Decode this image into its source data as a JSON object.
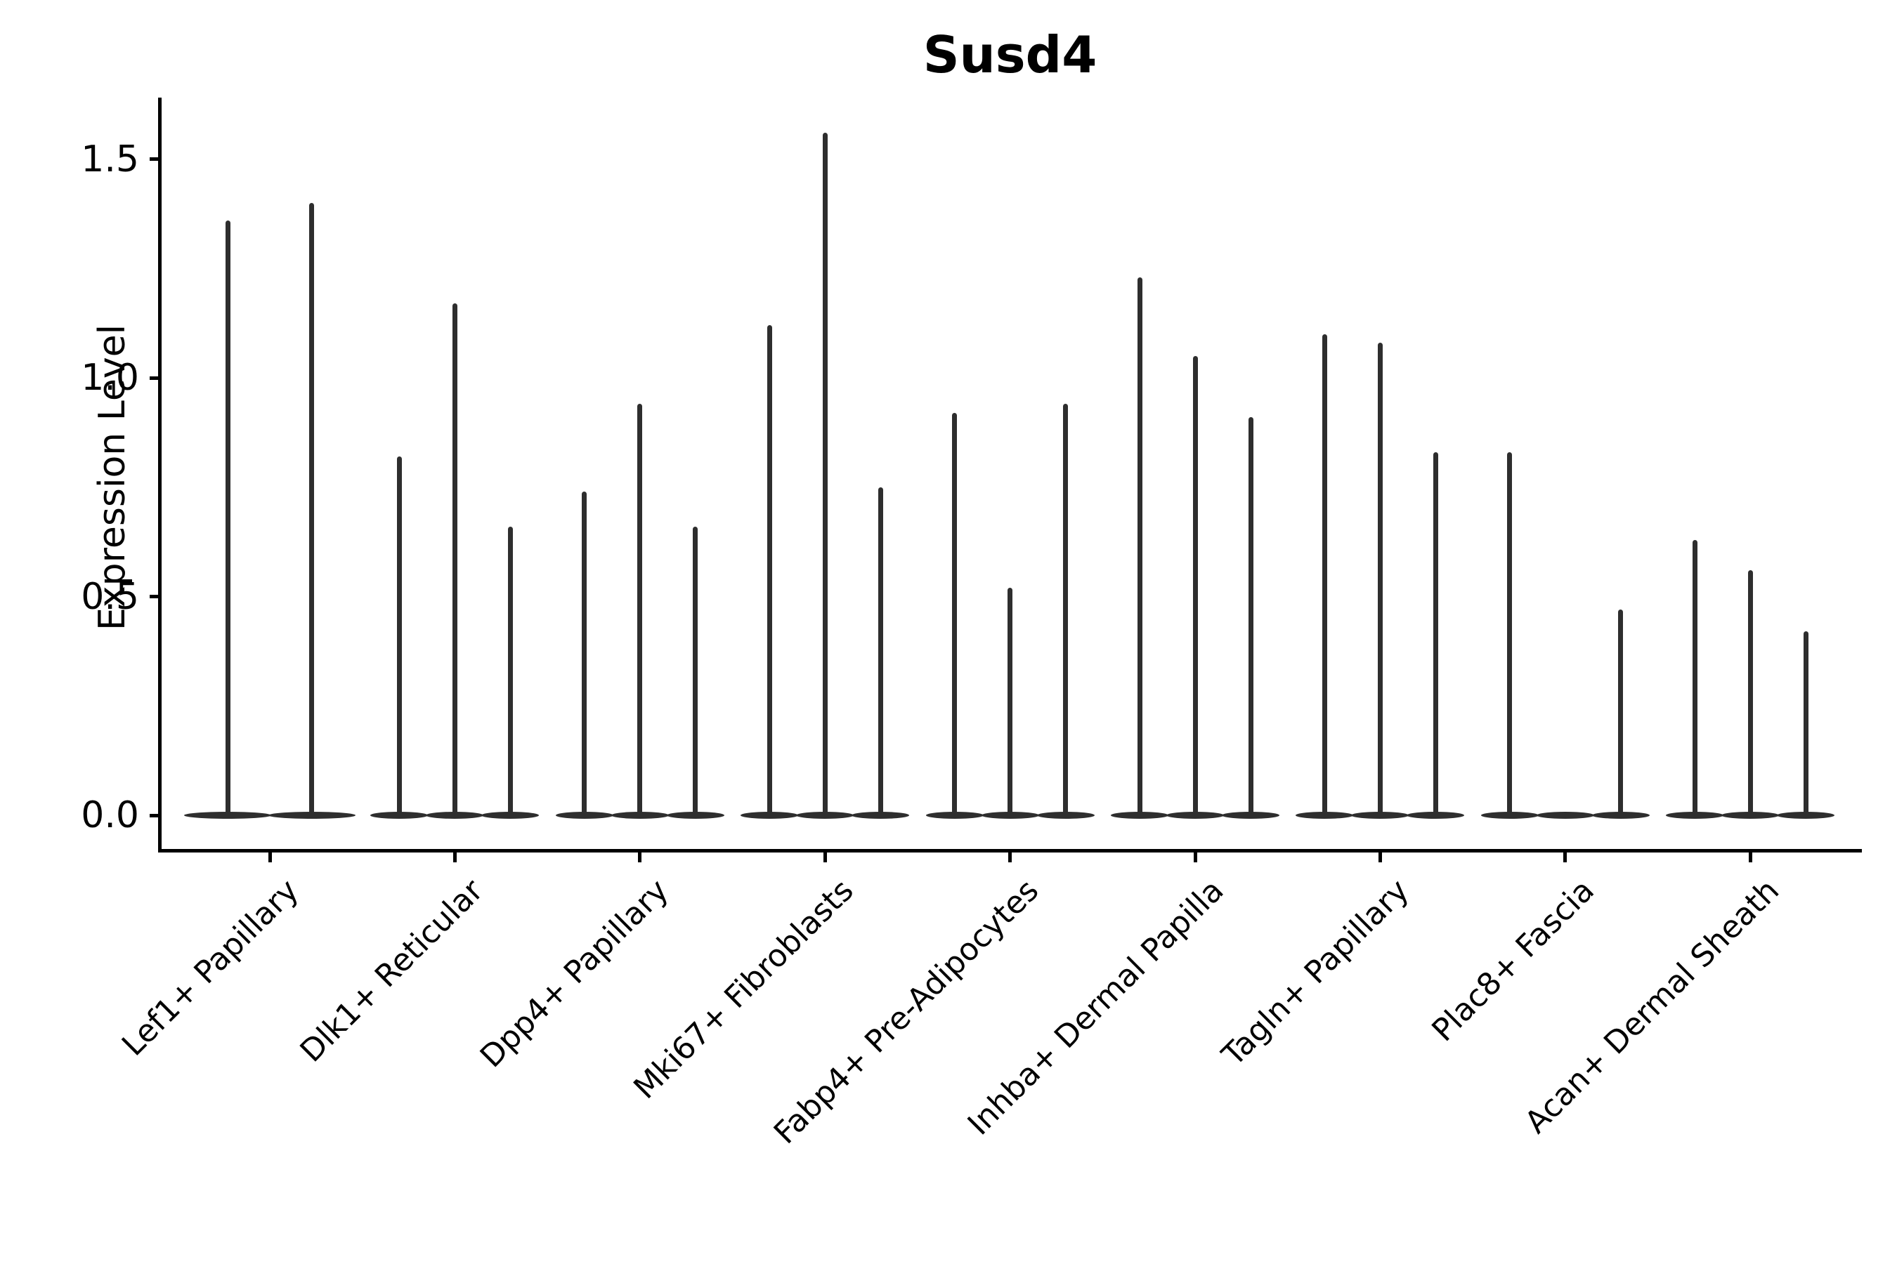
{
  "chart_data": {
    "type": "violin",
    "title": "Susd4",
    "ylabel": "Expression Level",
    "xlabel": "",
    "grid": false,
    "legend": "none",
    "ylim": [
      0,
      1.65
    ],
    "yticks": [
      {
        "label": "0.0",
        "value": 0.0
      },
      {
        "label": "0.5",
        "value": 0.5
      },
      {
        "label": "1.0",
        "value": 1.0
      },
      {
        "label": "1.5",
        "value": 1.5
      }
    ],
    "categories": [
      "Lef1+ Papillary",
      "Dlk1+ Reticular",
      "Dpp4+ Papillary",
      "Mki67+ Fibroblasts",
      "Fabp4+ Pre-Adipocytes",
      "Inhba+ Dermal Papilla",
      "Tagln+ Papillary",
      "Plac8+ Fascia",
      "Acan+ Dermal Sheath"
    ],
    "groups": [
      {
        "label": "Lef1+ Papillary",
        "violin_max_expression": [
          1.36,
          1.4
        ]
      },
      {
        "label": "Dlk1+ Reticular",
        "violin_max_expression": [
          0.82,
          1.17,
          0.66
        ]
      },
      {
        "label": "Dpp4+ Papillary",
        "violin_max_expression": [
          0.74,
          0.94,
          0.66
        ]
      },
      {
        "label": "Mki67+ Fibroblasts",
        "violin_max_expression": [
          1.12,
          1.56,
          0.75
        ]
      },
      {
        "label": "Fabp4+ Pre-Adipocytes",
        "violin_max_expression": [
          0.92,
          0.52,
          0.94
        ]
      },
      {
        "label": "Inhba+ Dermal Papilla",
        "violin_max_expression": [
          1.23,
          1.05,
          0.91
        ]
      },
      {
        "label": "Tagln+ Papillary",
        "violin_max_expression": [
          1.1,
          1.08,
          0.83
        ]
      },
      {
        "label": "Plac8+ Fascia",
        "violin_max_expression": [
          0.83,
          0.0,
          0.47
        ]
      },
      {
        "label": "Acan+ Dermal Sheath",
        "violin_max_expression": [
          0.63,
          0.56,
          0.42
        ]
      }
    ],
    "colors": {
      "violin": "#2e2e2e",
      "axis": "#000000",
      "background": "#ffffff"
    }
  }
}
